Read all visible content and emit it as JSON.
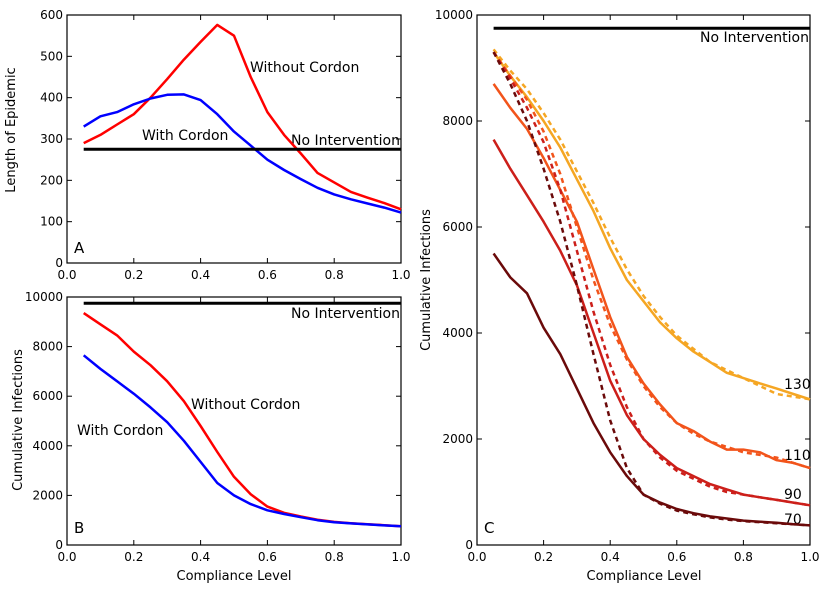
{
  "chart_data": [
    {
      "panel_label": "A",
      "type": "line",
      "xlabel": "",
      "ylabel": "Length of Epidemic",
      "xlim": [
        0.0,
        1.0
      ],
      "ylim": [
        0,
        600
      ],
      "xticks": [
        "0.0",
        "0.2",
        "0.4",
        "0.6",
        "0.8",
        "1.0"
      ],
      "yticks": [
        "0",
        "100",
        "200",
        "300",
        "400",
        "500",
        "600"
      ],
      "series": [
        {
          "name": "Without Cordon",
          "color": "#ff0000",
          "x": [
            0.05,
            0.1,
            0.15,
            0.2,
            0.25,
            0.3,
            0.35,
            0.4,
            0.45,
            0.5,
            0.55,
            0.6,
            0.65,
            0.7,
            0.75,
            0.8,
            0.85,
            0.9,
            0.95,
            1.0
          ],
          "y": [
            290,
            310,
            335,
            360,
            400,
            445,
            492,
            535,
            576,
            550,
            450,
            365,
            310,
            265,
            218,
            195,
            172,
            158,
            145,
            130
          ]
        },
        {
          "name": "With Cordon",
          "color": "#0000ff",
          "x": [
            0.05,
            0.1,
            0.15,
            0.2,
            0.25,
            0.3,
            0.35,
            0.4,
            0.45,
            0.5,
            0.55,
            0.6,
            0.65,
            0.7,
            0.75,
            0.8,
            0.85,
            0.9,
            0.95,
            1.0
          ],
          "y": [
            330,
            355,
            365,
            384,
            398,
            407,
            408,
            394,
            360,
            318,
            284,
            250,
            225,
            203,
            182,
            166,
            154,
            144,
            134,
            122
          ]
        },
        {
          "name": "No Intervention",
          "color": "#000000",
          "x": [
            0.05,
            1.0
          ],
          "y": [
            275,
            275
          ]
        }
      ],
      "annotations": [
        "Without Cordon",
        "With Cordon",
        "No Intervention"
      ]
    },
    {
      "panel_label": "B",
      "type": "line",
      "xlabel": "Compliance Level",
      "ylabel": "Cumulative Infections",
      "xlim": [
        0.0,
        1.0
      ],
      "ylim": [
        0,
        10000
      ],
      "xticks": [
        "0.0",
        "0.2",
        "0.4",
        "0.6",
        "0.8",
        "1.0"
      ],
      "yticks": [
        "0",
        "2000",
        "4000",
        "6000",
        "8000",
        "10000"
      ],
      "series": [
        {
          "name": "Without Cordon",
          "color": "#ff0000",
          "x": [
            0.05,
            0.1,
            0.15,
            0.2,
            0.25,
            0.3,
            0.35,
            0.4,
            0.45,
            0.5,
            0.55,
            0.6,
            0.65,
            0.7,
            0.75,
            0.8,
            0.85,
            0.9,
            0.95,
            1.0
          ],
          "y": [
            9350,
            8900,
            8450,
            7800,
            7250,
            6600,
            5800,
            4800,
            3750,
            2750,
            2050,
            1550,
            1300,
            1150,
            1020,
            930,
            880,
            840,
            800,
            760
          ]
        },
        {
          "name": "With Cordon",
          "color": "#0000ff",
          "x": [
            0.05,
            0.1,
            0.15,
            0.2,
            0.25,
            0.3,
            0.35,
            0.4,
            0.45,
            0.5,
            0.55,
            0.6,
            0.65,
            0.7,
            0.75,
            0.8,
            0.85,
            0.9,
            0.95,
            1.0
          ],
          "y": [
            7650,
            7100,
            6600,
            6100,
            5550,
            4950,
            4200,
            3350,
            2500,
            2000,
            1650,
            1400,
            1250,
            1120,
            1000,
            920,
            870,
            830,
            790,
            760
          ]
        },
        {
          "name": "No Intervention",
          "color": "#000000",
          "x": [
            0.05,
            1.0
          ],
          "y": [
            9750,
            9750
          ]
        }
      ],
      "annotations": [
        "Without Cordon",
        "With Cordon",
        "No Intervention"
      ]
    },
    {
      "panel_label": "C",
      "type": "line",
      "xlabel": "Compliance Level",
      "ylabel": "Cumulative Infections",
      "xlim": [
        0.0,
        1.0
      ],
      "ylim": [
        0,
        10000
      ],
      "xticks": [
        "0.0",
        "0.2",
        "0.4",
        "0.6",
        "0.8",
        "1.0"
      ],
      "yticks": [
        "0",
        "2000",
        "4000",
        "6000",
        "8000",
        "10000"
      ],
      "series": [
        {
          "name": "No Intervention",
          "color": "#000000",
          "style": "solid",
          "x": [
            0.05,
            1.0
          ],
          "y": [
            9750,
            9750
          ]
        },
        {
          "name": "130",
          "color": "#f5a623",
          "style": "solid",
          "x": [
            0.05,
            0.1,
            0.15,
            0.2,
            0.25,
            0.3,
            0.35,
            0.4,
            0.45,
            0.5,
            0.55,
            0.6,
            0.65,
            0.7,
            0.75,
            0.8,
            0.85,
            0.9,
            0.95,
            1.0
          ],
          "y": [
            9300,
            8850,
            8450,
            8000,
            7500,
            6900,
            6300,
            5600,
            5000,
            4600,
            4200,
            3900,
            3650,
            3450,
            3250,
            3150,
            3050,
            2950,
            2850,
            2750
          ]
        },
        {
          "name": "130 dashed",
          "color": "#f5a623",
          "style": "dashed",
          "x": [
            0.05,
            0.1,
            0.15,
            0.2,
            0.25,
            0.3,
            0.35,
            0.4,
            0.45,
            0.5,
            0.55,
            0.6,
            0.65,
            0.7,
            0.75,
            0.8,
            0.85,
            0.9,
            0.95,
            1.0
          ],
          "y": [
            9350,
            8950,
            8600,
            8150,
            7650,
            7050,
            6450,
            5800,
            5200,
            4700,
            4300,
            3950,
            3700,
            3450,
            3300,
            3150,
            3000,
            2850,
            2800,
            2750
          ]
        },
        {
          "name": "110",
          "color": "#f2541b",
          "style": "solid",
          "x": [
            0.05,
            0.1,
            0.15,
            0.2,
            0.25,
            0.3,
            0.35,
            0.4,
            0.45,
            0.5,
            0.55,
            0.6,
            0.65,
            0.7,
            0.75,
            0.8,
            0.85,
            0.9,
            0.95,
            1.0
          ],
          "y": [
            8700,
            8250,
            7850,
            7300,
            6700,
            6100,
            5200,
            4300,
            3550,
            3050,
            2650,
            2300,
            2150,
            1950,
            1800,
            1800,
            1750,
            1600,
            1550,
            1450
          ]
        },
        {
          "name": "110 dashed",
          "color": "#f2541b",
          "style": "dashed",
          "x": [
            0.05,
            0.1,
            0.15,
            0.2,
            0.25,
            0.3,
            0.35,
            0.4,
            0.45,
            0.5,
            0.55,
            0.6,
            0.65,
            0.7,
            0.75,
            0.8,
            0.85,
            0.9,
            0.95,
            1.0
          ],
          "y": [
            9300,
            8850,
            8400,
            7800,
            7000,
            6000,
            5000,
            4150,
            3500,
            3000,
            2600,
            2300,
            2100,
            1950,
            1850,
            1750,
            1700,
            1650,
            1550,
            1450
          ]
        },
        {
          "name": "90",
          "color": "#cc1f1a",
          "style": "solid",
          "x": [
            0.05,
            0.1,
            0.15,
            0.2,
            0.25,
            0.3,
            0.35,
            0.4,
            0.45,
            0.5,
            0.55,
            0.6,
            0.65,
            0.7,
            0.75,
            0.8,
            0.85,
            0.9,
            0.95,
            1.0
          ],
          "y": [
            7650,
            7100,
            6600,
            6100,
            5550,
            4900,
            4000,
            3100,
            2450,
            2000,
            1700,
            1450,
            1300,
            1150,
            1050,
            950,
            900,
            850,
            800,
            750
          ]
        },
        {
          "name": "90 dashed",
          "color": "#cc1f1a",
          "style": "dashed",
          "x": [
            0.05,
            0.1,
            0.15,
            0.2,
            0.25,
            0.3,
            0.35,
            0.4,
            0.45,
            0.5,
            0.55,
            0.6,
            0.65,
            0.7,
            0.75,
            0.8,
            0.85,
            0.9,
            0.95,
            1.0
          ],
          "y": [
            9300,
            8800,
            8250,
            7600,
            6700,
            5550,
            4400,
            3400,
            2600,
            2000,
            1650,
            1400,
            1250,
            1100,
            1000,
            950,
            900,
            850,
            800,
            750
          ]
        },
        {
          "name": "70",
          "color": "#6b0a0a",
          "style": "solid",
          "x": [
            0.05,
            0.1,
            0.15,
            0.2,
            0.25,
            0.3,
            0.35,
            0.4,
            0.45,
            0.5,
            0.55,
            0.6,
            0.65,
            0.7,
            0.75,
            0.8,
            0.85,
            0.9,
            0.95,
            1.0
          ],
          "y": [
            5500,
            5050,
            4750,
            4100,
            3600,
            2950,
            2300,
            1750,
            1300,
            950,
            800,
            680,
            600,
            540,
            500,
            460,
            440,
            420,
            390,
            370
          ]
        },
        {
          "name": "70 dashed",
          "color": "#6b0a0a",
          "style": "dashed",
          "x": [
            0.05,
            0.1,
            0.15,
            0.2,
            0.25,
            0.3,
            0.35,
            0.4,
            0.45,
            0.5,
            0.55,
            0.6,
            0.65,
            0.7,
            0.75,
            0.8,
            0.85,
            0.9,
            0.95,
            1.0
          ],
          "y": [
            9300,
            8700,
            8000,
            7100,
            6100,
            4900,
            3600,
            2350,
            1450,
            950,
            780,
            650,
            580,
            520,
            480,
            450,
            430,
            410,
            390,
            370
          ]
        }
      ],
      "annotations": [
        "No Intervention",
        "130",
        "110",
        "90",
        "70"
      ]
    }
  ]
}
